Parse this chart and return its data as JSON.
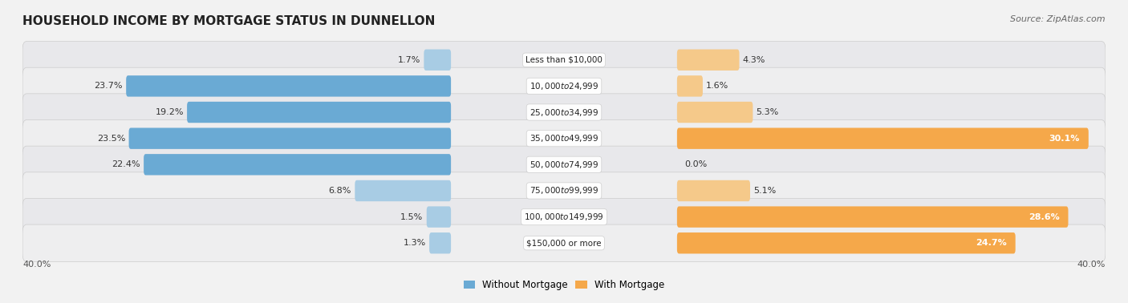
{
  "title": "HOUSEHOLD INCOME BY MORTGAGE STATUS IN DUNNELLON",
  "source": "Source: ZipAtlas.com",
  "categories": [
    "Less than $10,000",
    "$10,000 to $24,999",
    "$25,000 to $34,999",
    "$35,000 to $49,999",
    "$50,000 to $74,999",
    "$75,000 to $99,999",
    "$100,000 to $149,999",
    "$150,000 or more"
  ],
  "without_mortgage": [
    1.7,
    23.7,
    19.2,
    23.5,
    22.4,
    6.8,
    1.5,
    1.3
  ],
  "with_mortgage": [
    4.3,
    1.6,
    5.3,
    30.1,
    0.0,
    5.1,
    28.6,
    24.7
  ],
  "color_without_dark": "#6aaad4",
  "color_without_light": "#a8cce4",
  "color_with_dark": "#f5a84a",
  "color_with_light": "#f5c98a",
  "axis_limit": 40.0,
  "background_color": "#f2f2f2",
  "row_bg_even": "#e8e8eb",
  "row_bg_odd": "#eeeeef",
  "title_fontsize": 11,
  "source_fontsize": 8,
  "bar_label_fontsize": 8,
  "category_fontsize": 7.5,
  "legend_fontsize": 8.5,
  "dark_threshold": 10.0
}
